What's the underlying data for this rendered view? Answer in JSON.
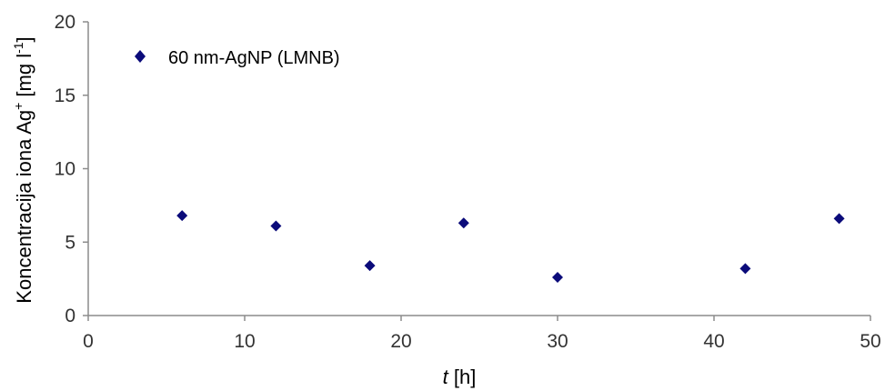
{
  "chart_data": {
    "type": "scatter",
    "xlabel_italic": "t",
    "xlabel_rest": " [h]",
    "ylabel_main": "Koncentracija iona Ag",
    "ylabel_sup": "+",
    "ylabel_unit": " [mg l",
    "ylabel_unit_sup": "-1",
    "ylabel_close": "]",
    "xlim": [
      0,
      50
    ],
    "ylim": [
      0,
      20
    ],
    "xticks": [
      0,
      10,
      20,
      30,
      40,
      50
    ],
    "yticks": [
      0,
      5,
      10,
      15,
      20
    ],
    "grid": false,
    "legend_position": "top-left",
    "series": [
      {
        "name": "60 nm-AgNP (LMNB)",
        "color": "#0b0b7a",
        "marker": "diamond",
        "points": [
          {
            "x": 6,
            "y": 6.8
          },
          {
            "x": 12,
            "y": 6.1
          },
          {
            "x": 18,
            "y": 3.4
          },
          {
            "x": 24,
            "y": 6.3
          },
          {
            "x": 30,
            "y": 2.6
          },
          {
            "x": 42,
            "y": 3.2
          },
          {
            "x": 48,
            "y": 6.6
          }
        ]
      }
    ]
  }
}
